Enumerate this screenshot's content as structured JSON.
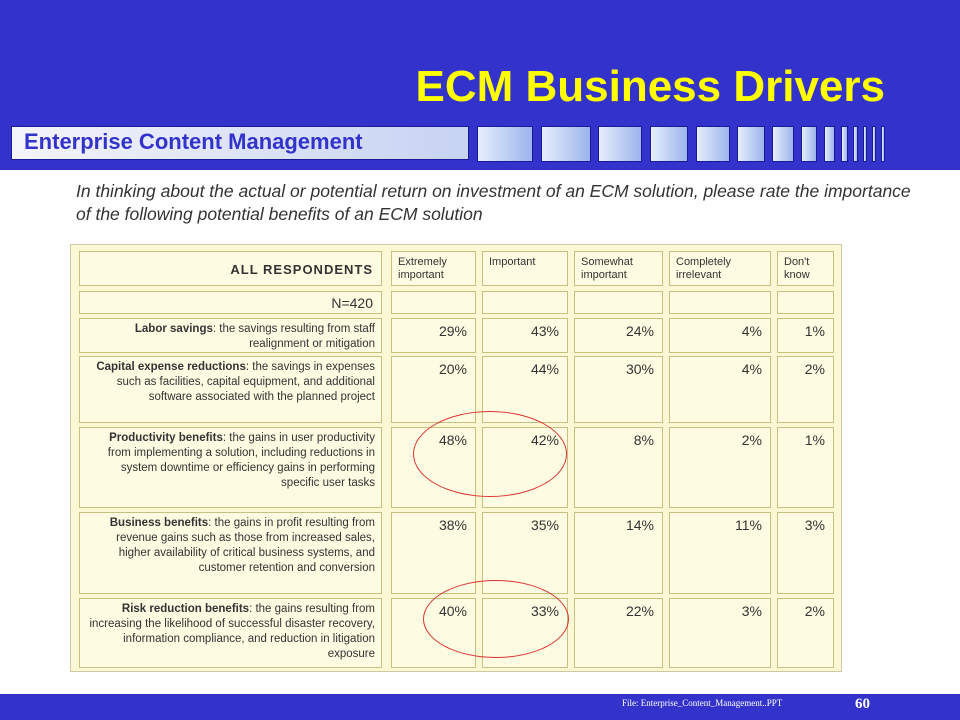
{
  "slide": {
    "title": "ECM Business Drivers",
    "subtitle": "Enterprise Content Management",
    "question": "In thinking about the actual or potential return on investment of an ECM solution, please rate the importance of the following potential benefits of an ECM solution",
    "footer_file": "File: Enterprise_Content_Management..PPT",
    "page_number": "60"
  },
  "table": {
    "header_label": "ALL RESPONDENTS",
    "sample": "N=420",
    "columns": [
      "Extremely important",
      "Important",
      "Somewhat important",
      "Completely irrelevant",
      "Don't know"
    ],
    "rows": [
      {
        "label": "Labor savings",
        "desc": ": the savings resulting from staff realignment or mitigation",
        "values": [
          "29%",
          "43%",
          "24%",
          "4%",
          "1%"
        ]
      },
      {
        "label": "Capital expense reductions",
        "desc": ": the savings in expenses such as facilities, capital equipment, and additional software associated with the planned project",
        "values": [
          "20%",
          "44%",
          "30%",
          "4%",
          "2%"
        ]
      },
      {
        "label": "Productivity benefits",
        "desc": ": the gains in user productivity from implementing a solution, including reductions in system downtime or efficiency gains in performing specific user tasks",
        "values": [
          "48%",
          "42%",
          "8%",
          "2%",
          "1%"
        ]
      },
      {
        "label": "Business benefits",
        "desc": ": the gains in profit resulting from revenue gains such as those from increased sales, higher availability of critical business systems, and customer retention and conversion",
        "values": [
          "38%",
          "35%",
          "14%",
          "11%",
          "3%"
        ]
      },
      {
        "label": "Risk reduction benefits",
        "desc": ": the gains resulting from increasing the likelihood of successful disaster recovery, information compliance, and reduction in litigation exposure",
        "values": [
          "40%",
          "33%",
          "22%",
          "3%",
          "2%"
        ]
      }
    ]
  },
  "colors": {
    "header_bg": "#3333cc",
    "title": "#ffff00",
    "highlight_oval": "#dd3333"
  }
}
